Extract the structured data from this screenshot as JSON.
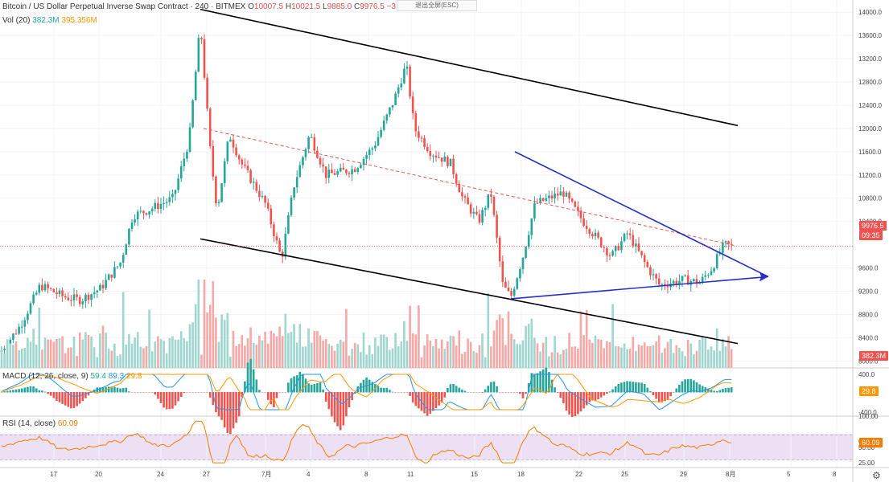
{
  "header": {
    "symbol": "Bitcoin / US Dollar Perpetual Inverse Swap Contract · 240 · BITMEX",
    "open_label": "O",
    "open": "10007.5",
    "high_label": "H",
    "high": "10021.5",
    "low_label": "L",
    "low": "9885.0",
    "close_label": "C",
    "close": "9976.5",
    "change": "−31.0 (−0.31%)",
    "exit_fullscreen": "退出全屏(ESC)"
  },
  "vol_legend": {
    "label": "Vol (20)",
    "v1": "382.3M",
    "v2": "395.356M"
  },
  "macd_legend": {
    "label": "MACD (12, 26, close, 9)",
    "v1": "59.4",
    "v2": "89.3",
    "v3": "29.8"
  },
  "rsi_legend": {
    "label": "RSI (14, close)",
    "v1": "60.09"
  },
  "price_tag": "9976.5",
  "countdown_tag": "09:35",
  "volume_tag": "382.3M",
  "macd_tag": "29.8",
  "rsi_tag": "60.09",
  "colors": {
    "up": "#26a69a",
    "down": "#ef5350",
    "trend": "#000000",
    "triangle": "#2630c8",
    "rsi": "#f57c00",
    "macd": "#2196f3",
    "signal": "#ff9800"
  },
  "chart_data": {
    "type": "candlestick",
    "price_axis": {
      "ticks": [
        14000,
        13600,
        13200,
        12800,
        12400,
        12000,
        11600,
        11200,
        10800,
        10400,
        9600,
        9200,
        8800,
        8400,
        8000
      ],
      "range": [
        7880,
        14100
      ]
    },
    "macd_axis": {
      "ticks": [
        "400.0",
        "-400.0"
      ]
    },
    "rsi_axis": {
      "ticks": [
        "100.00",
        "60.00",
        "50.00",
        "25.00"
      ],
      "range": [
        20,
        100
      ]
    },
    "x_ticks": [
      "17",
      "20",
      "24",
      "27",
      "7月",
      "4",
      "8",
      "11",
      "15",
      "18",
      "22",
      "25",
      "29",
      "8月",
      "5",
      "8"
    ],
    "price_keypoints": [
      [
        0,
        8150
      ],
      [
        25,
        8600
      ],
      [
        50,
        9300
      ],
      [
        80,
        9100
      ],
      [
        100,
        9050
      ],
      [
        125,
        9250
      ],
      [
        150,
        9700
      ],
      [
        165,
        10500
      ],
      [
        185,
        10600
      ],
      [
        215,
        10800
      ],
      [
        235,
        11800
      ],
      [
        249,
        13800
      ],
      [
        262,
        11500
      ],
      [
        270,
        10600
      ],
      [
        285,
        11900
      ],
      [
        300,
        11400
      ],
      [
        330,
        10700
      ],
      [
        350,
        9750
      ],
      [
        365,
        11000
      ],
      [
        385,
        11900
      ],
      [
        405,
        11200
      ],
      [
        440,
        11300
      ],
      [
        465,
        11700
      ],
      [
        490,
        12500
      ],
      [
        505,
        13100
      ],
      [
        515,
        12000
      ],
      [
        535,
        11600
      ],
      [
        560,
        11400
      ],
      [
        575,
        10800
      ],
      [
        595,
        10400
      ],
      [
        610,
        10900
      ],
      [
        625,
        9300
      ],
      [
        635,
        9100
      ],
      [
        650,
        9800
      ],
      [
        665,
        10700
      ],
      [
        700,
        10900
      ],
      [
        725,
        10400
      ],
      [
        760,
        9800
      ],
      [
        780,
        10200
      ],
      [
        805,
        9600
      ],
      [
        820,
        9300
      ],
      [
        850,
        9400
      ],
      [
        870,
        9350
      ],
      [
        885,
        9600
      ],
      [
        900,
        10000
      ],
      [
        910,
        9976
      ]
    ],
    "trendlines": [
      {
        "name": "channel-upper",
        "from": [
          "6/26",
          14050
        ],
        "to": [
          "8/8",
          12050
        ]
      },
      {
        "name": "channel-lower",
        "from": [
          "6/26",
          10100
        ],
        "to": [
          "8/8",
          8300
        ]
      },
      {
        "name": "dashed-resistance",
        "from": [
          "6/27",
          12000
        ],
        "to": [
          "8/1",
          9990
        ]
      },
      {
        "name": "triangle-upper",
        "from": [
          "7/19",
          11600
        ],
        "to": [
          "8/4",
          9450
        ]
      },
      {
        "name": "triangle-lower",
        "from": [
          "7/17",
          9070
        ],
        "to": [
          "8/4",
          9450
        ]
      }
    ]
  }
}
